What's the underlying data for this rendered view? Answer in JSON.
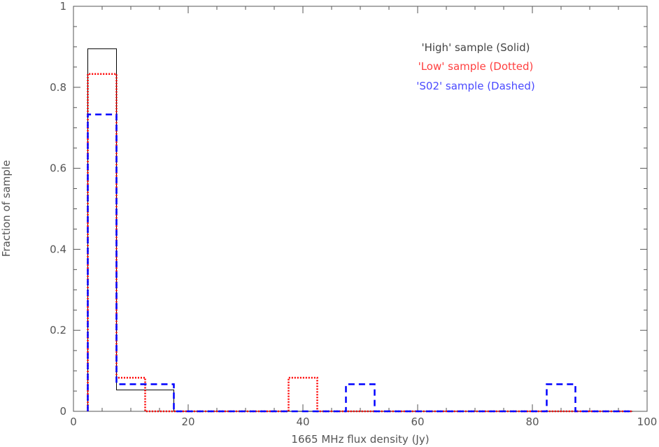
{
  "chart_data": {
    "type": "line",
    "subtype": "step-histogram",
    "title": "",
    "xlabel": "1665 MHz flux density (Jy)",
    "ylabel": "Fraction of sample",
    "xlim": [
      0,
      100
    ],
    "ylim": [
      0,
      1
    ],
    "xticks": [
      0,
      20,
      40,
      60,
      80,
      100
    ],
    "yticks": [
      0,
      0.2,
      0.4,
      0.6,
      0.8,
      1
    ],
    "xtick_labels": [
      "0",
      "20",
      "40",
      "60",
      "80",
      "100"
    ],
    "ytick_labels": [
      "0",
      "0.2",
      "0.4",
      "0.6",
      "0.8",
      "1"
    ],
    "grid": false,
    "legend_position": "top-right",
    "bin_edges": [
      2.5,
      7.5,
      12.5,
      17.5,
      22.5,
      27.5,
      32.5,
      37.5,
      42.5,
      47.5,
      52.5,
      57.5,
      62.5,
      67.5,
      72.5,
      77.5,
      82.5,
      87.5,
      92.5,
      97.5
    ],
    "series": [
      {
        "name": "'High' sample (Solid)",
        "color": "#000000",
        "style": "solid",
        "values": [
          0.895,
          0.053,
          0.053,
          0,
          0,
          0,
          0,
          0,
          0,
          0,
          0,
          0,
          0,
          0,
          0,
          0,
          0,
          0,
          0
        ]
      },
      {
        "name": "'Low' sample (Dotted)",
        "color": "#ff0000",
        "style": "dotted",
        "values": [
          0.833,
          0.083,
          0,
          0,
          0,
          0,
          0,
          0.083,
          0,
          0,
          0,
          0,
          0,
          0,
          0,
          0,
          0,
          0,
          0
        ]
      },
      {
        "name": "'S02' sample (Dashed)",
        "color": "#0000ff",
        "style": "dashed",
        "values": [
          0.733,
          0.067,
          0.067,
          0,
          0,
          0,
          0,
          0,
          0,
          0.067,
          0,
          0,
          0,
          0,
          0,
          0,
          0.067,
          0,
          0
        ]
      }
    ]
  }
}
